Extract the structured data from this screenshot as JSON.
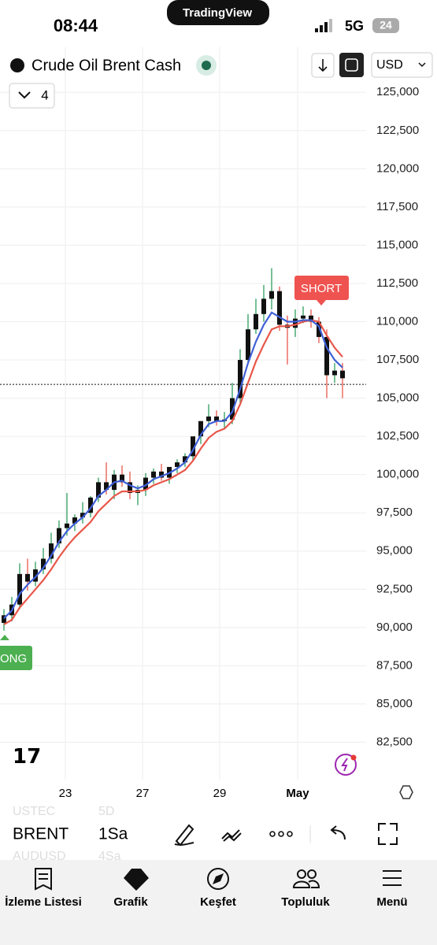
{
  "status_bar": {
    "time": "08:44",
    "app": "TradingView",
    "network": "5G",
    "battery": "24"
  },
  "header": {
    "symbol": "Crude Oil Brent Cash",
    "indicator_count": "4",
    "currency": "USD"
  },
  "chart": {
    "type": "candlestick",
    "ylim": [
      80000,
      128000
    ],
    "yticks": [
      {
        "value": 125000,
        "label": "125,000"
      },
      {
        "value": 122500,
        "label": "122,500"
      },
      {
        "value": 120000,
        "label": "120,000"
      },
      {
        "value": 117500,
        "label": "117,500"
      },
      {
        "value": 115000,
        "label": "115,000"
      },
      {
        "value": 112500,
        "label": "112,500"
      },
      {
        "value": 110000,
        "label": "110,000"
      },
      {
        "value": 107500,
        "label": "107,500"
      },
      {
        "value": 105000,
        "label": "105,000"
      },
      {
        "value": 102500,
        "label": "102,500"
      },
      {
        "value": 100000,
        "label": "100,000"
      },
      {
        "value": 97500,
        "label": "97,500"
      },
      {
        "value": 95000,
        "label": "95,000"
      },
      {
        "value": 92500,
        "label": "92,500"
      },
      {
        "value": 90000,
        "label": "90,000"
      },
      {
        "value": 87500,
        "label": "87,500"
      },
      {
        "value": 85000,
        "label": "85,000"
      },
      {
        "value": 82500,
        "label": "82,500"
      }
    ],
    "xticks": [
      "23",
      "27",
      "29",
      "May"
    ],
    "open": [
      90300,
      90800,
      91500,
      93500,
      93000,
      93800,
      94500,
      95500,
      96500,
      96800,
      97200,
      97500,
      98500,
      99500,
      99000,
      100000,
      99500,
      98800,
      99000,
      99800,
      100200,
      99800,
      100500,
      100800,
      101200,
      102500,
      103500,
      103800,
      103500,
      103600,
      105000,
      107500,
      109500,
      110500,
      111500,
      112000,
      109800,
      109600,
      110200,
      110400,
      110000,
      109000,
      106500,
      106800
    ],
    "high": [
      91200,
      92000,
      94200,
      94500,
      94300,
      95200,
      96200,
      97000,
      98800,
      97400,
      98200,
      98600,
      99800,
      100800,
      100300,
      100600,
      100200,
      99300,
      100100,
      100400,
      100700,
      100300,
      101000,
      101400,
      102200,
      103300,
      104600,
      104200,
      104100,
      106000,
      108200,
      110500,
      111500,
      112400,
      113500,
      112300,
      110400,
      110800,
      111000,
      110800,
      110300,
      109500,
      107300,
      107300
    ],
    "low": [
      89800,
      90400,
      91200,
      92400,
      92700,
      93500,
      94200,
      95200,
      96000,
      96300,
      96800,
      97200,
      98200,
      98700,
      98400,
      99200,
      98400,
      98000,
      98600,
      99400,
      99600,
      99400,
      100100,
      100500,
      100900,
      102000,
      103100,
      103200,
      103000,
      103300,
      104700,
      107200,
      109200,
      110000,
      110800,
      109400,
      107200,
      109000,
      109900,
      109600,
      108600,
      105000,
      106000,
      105000
    ],
    "close": [
      90800,
      91500,
      93500,
      93000,
      93800,
      94500,
      95500,
      96500,
      96800,
      97200,
      97500,
      98500,
      99500,
      99000,
      100000,
      99500,
      98800,
      99000,
      99800,
      100200,
      99800,
      100500,
      100800,
      101200,
      102500,
      103500,
      103800,
      103500,
      103600,
      105000,
      107500,
      109500,
      110500,
      111500,
      112000,
      109800,
      109600,
      110200,
      110400,
      110000,
      109000,
      106500,
      106800,
      106300
    ],
    "ma_fast": {
      "color": "#3f5fd6",
      "values": [
        90600,
        91100,
        92200,
        92800,
        93300,
        93900,
        94700,
        95600,
        96300,
        96800,
        97200,
        97800,
        98600,
        99000,
        99500,
        99600,
        99300,
        99100,
        99300,
        99700,
        99900,
        100100,
        100400,
        100800,
        101600,
        102600,
        103300,
        103500,
        103500,
        104100,
        105600,
        107300,
        108700,
        109800,
        110600,
        110300,
        110000,
        110000,
        110100,
        110100,
        109700,
        108300,
        107500,
        107000
      ]
    },
    "ma_slow": {
      "color": "#e8574a",
      "values": [
        90200,
        90500,
        91300,
        91900,
        92500,
        93100,
        93800,
        94600,
        95300,
        95900,
        96400,
        96900,
        97600,
        98100,
        98600,
        98900,
        98900,
        98900,
        99000,
        99300,
        99500,
        99700,
        100000,
        100300,
        100900,
        101700,
        102400,
        102800,
        103000,
        103500,
        104600,
        106000,
        107400,
        108500,
        109500,
        109700,
        109700,
        109800,
        110000,
        110100,
        110000,
        109100,
        108300,
        107700
      ]
    },
    "current_price": 105900,
    "short_label": "SHORT",
    "long_label": "ONG"
  },
  "toolbar": {
    "symbol": "BRENT",
    "interval": "1Sa",
    "prev_symbol": "USTEC",
    "prev_interval": "5D",
    "next_symbol": "AUDUSD",
    "next_interval": "4Sa"
  },
  "tabs": [
    "İzleme Listesi",
    "Grafik",
    "Keşfet",
    "Topluluk",
    "Menü"
  ]
}
